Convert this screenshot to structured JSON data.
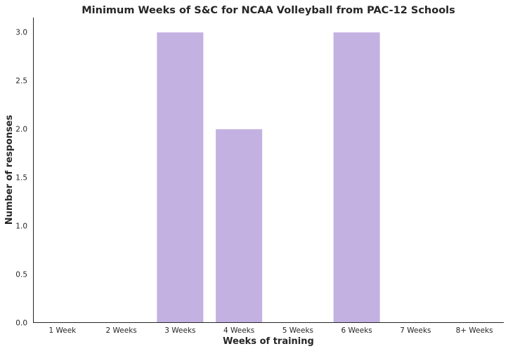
{
  "chart_data": {
    "type": "bar",
    "title": "Minimum Weeks of S&C for NCAA Volleyball from PAC-12 Schools",
    "xlabel": "Weeks of training",
    "ylabel": "Number of responses",
    "categories": [
      "1 Week",
      "2 Weeks",
      "3 Weeks",
      "4 Weeks",
      "5 Weeks",
      "6 Weeks",
      "7 Weeks",
      "8+ Weeks"
    ],
    "values": [
      0,
      0,
      3,
      2,
      0,
      3,
      0,
      0
    ],
    "ylim": [
      0,
      3.15
    ],
    "yticks": [
      "0.0",
      "0.5",
      "1.0",
      "1.5",
      "2.0",
      "2.5",
      "3.0"
    ],
    "grid": false,
    "bar_color": "#c3b1e1",
    "bar_edge_color": "#ffffff"
  }
}
